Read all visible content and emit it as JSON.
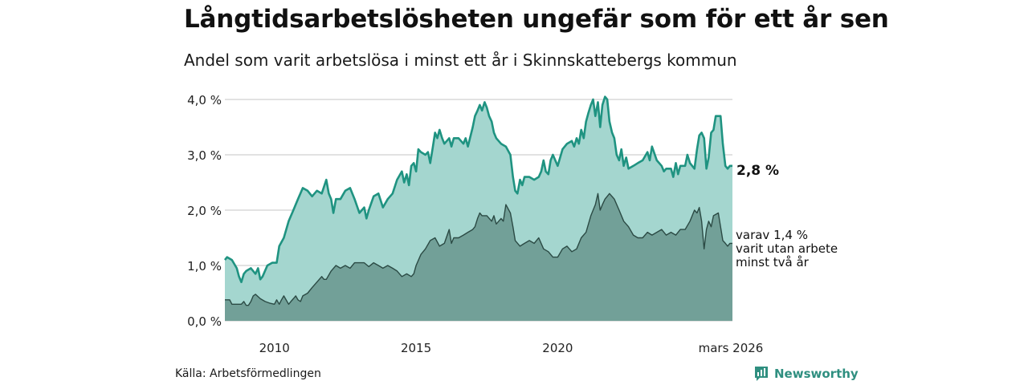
{
  "title": "Långtidsarbetslösheten ungefär som för ett år sen",
  "subtitle": "Andel som varit arbetslösa i minst ett år i Skinnskattebergs kommun",
  "source": "Källa: Arbetsförmedlingen",
  "brand": {
    "name": "Newsworthy",
    "icon": "newsworthy-logo-icon"
  },
  "colors": {
    "main_line": "#1f9381",
    "main_fill": "#a4d6cf",
    "sub_line": "#2b4a44",
    "sub_fill": "#72a098",
    "grid": "#d9d9d9",
    "brand": "#2f8f80"
  },
  "chart_data": {
    "type": "area",
    "title": "Långtidsarbetslösheten ungefär som för ett år sen",
    "subtitle": "Andel som varit arbetslösa i minst ett år i Skinnskattebergs kommun",
    "xlabel": "",
    "ylabel": "",
    "x_range": [
      2008.25,
      2026.17
    ],
    "ylim": [
      0,
      4.0
    ],
    "y_ticks": [
      0,
      1,
      2,
      3,
      4
    ],
    "y_tick_labels": [
      "0,0 %",
      "1,0 %",
      "2,0 %",
      "3,0 %",
      "4,0 %"
    ],
    "x_ticks": [
      2010,
      2015,
      2020,
      2026.17
    ],
    "x_tick_labels": [
      "2010",
      "2015",
      "2020",
      "mars 2026"
    ],
    "grid": true,
    "series": [
      {
        "name": "Minst ett år",
        "end_label": "2,8 %",
        "points": [
          [
            2008.25,
            1.1
          ],
          [
            2008.33,
            1.15
          ],
          [
            2008.5,
            1.1
          ],
          [
            2008.67,
            0.95
          ],
          [
            2008.75,
            0.8
          ],
          [
            2008.83,
            0.7
          ],
          [
            2008.92,
            0.85
          ],
          [
            2009.0,
            0.9
          ],
          [
            2009.17,
            0.95
          ],
          [
            2009.33,
            0.85
          ],
          [
            2009.42,
            0.95
          ],
          [
            2009.5,
            0.75
          ],
          [
            2009.58,
            0.8
          ],
          [
            2009.75,
            1.0
          ],
          [
            2009.92,
            1.05
          ],
          [
            2010.08,
            1.05
          ],
          [
            2010.17,
            1.35
          ],
          [
            2010.33,
            1.5
          ],
          [
            2010.5,
            1.8
          ],
          [
            2010.67,
            2.0
          ],
          [
            2010.83,
            2.2
          ],
          [
            2011.0,
            2.4
          ],
          [
            2011.17,
            2.35
          ],
          [
            2011.33,
            2.25
          ],
          [
            2011.5,
            2.35
          ],
          [
            2011.67,
            2.3
          ],
          [
            2011.83,
            2.55
          ],
          [
            2011.92,
            2.3
          ],
          [
            2012.0,
            2.2
          ],
          [
            2012.08,
            1.95
          ],
          [
            2012.17,
            2.2
          ],
          [
            2012.33,
            2.2
          ],
          [
            2012.5,
            2.35
          ],
          [
            2012.67,
            2.4
          ],
          [
            2012.83,
            2.2
          ],
          [
            2013.0,
            1.95
          ],
          [
            2013.17,
            2.05
          ],
          [
            2013.25,
            1.85
          ],
          [
            2013.33,
            2.0
          ],
          [
            2013.5,
            2.25
          ],
          [
            2013.67,
            2.3
          ],
          [
            2013.83,
            2.05
          ],
          [
            2014.0,
            2.2
          ],
          [
            2014.17,
            2.3
          ],
          [
            2014.33,
            2.55
          ],
          [
            2014.5,
            2.7
          ],
          [
            2014.58,
            2.5
          ],
          [
            2014.67,
            2.65
          ],
          [
            2014.75,
            2.45
          ],
          [
            2014.83,
            2.8
          ],
          [
            2014.92,
            2.85
          ],
          [
            2015.0,
            2.7
          ],
          [
            2015.08,
            3.1
          ],
          [
            2015.17,
            3.05
          ],
          [
            2015.33,
            3.0
          ],
          [
            2015.42,
            3.05
          ],
          [
            2015.5,
            2.85
          ],
          [
            2015.58,
            3.1
          ],
          [
            2015.67,
            3.4
          ],
          [
            2015.75,
            3.3
          ],
          [
            2015.83,
            3.45
          ],
          [
            2015.92,
            3.3
          ],
          [
            2016.0,
            3.2
          ],
          [
            2016.17,
            3.3
          ],
          [
            2016.25,
            3.15
          ],
          [
            2016.33,
            3.3
          ],
          [
            2016.5,
            3.3
          ],
          [
            2016.67,
            3.2
          ],
          [
            2016.75,
            3.3
          ],
          [
            2016.83,
            3.15
          ],
          [
            2017.0,
            3.5
          ],
          [
            2017.08,
            3.7
          ],
          [
            2017.17,
            3.8
          ],
          [
            2017.25,
            3.9
          ],
          [
            2017.33,
            3.8
          ],
          [
            2017.42,
            3.95
          ],
          [
            2017.5,
            3.85
          ],
          [
            2017.58,
            3.7
          ],
          [
            2017.67,
            3.6
          ],
          [
            2017.75,
            3.4
          ],
          [
            2017.83,
            3.3
          ],
          [
            2018.0,
            3.2
          ],
          [
            2018.17,
            3.15
          ],
          [
            2018.33,
            3.0
          ],
          [
            2018.42,
            2.6
          ],
          [
            2018.5,
            2.35
          ],
          [
            2018.58,
            2.3
          ],
          [
            2018.67,
            2.55
          ],
          [
            2018.75,
            2.45
          ],
          [
            2018.83,
            2.6
          ],
          [
            2019.0,
            2.6
          ],
          [
            2019.17,
            2.55
          ],
          [
            2019.33,
            2.6
          ],
          [
            2019.42,
            2.7
          ],
          [
            2019.5,
            2.9
          ],
          [
            2019.58,
            2.7
          ],
          [
            2019.67,
            2.65
          ],
          [
            2019.75,
            2.9
          ],
          [
            2019.83,
            3.0
          ],
          [
            2020.0,
            2.8
          ],
          [
            2020.17,
            3.1
          ],
          [
            2020.33,
            3.2
          ],
          [
            2020.5,
            3.25
          ],
          [
            2020.58,
            3.15
          ],
          [
            2020.67,
            3.3
          ],
          [
            2020.75,
            3.2
          ],
          [
            2020.83,
            3.45
          ],
          [
            2020.92,
            3.3
          ],
          [
            2021.0,
            3.6
          ],
          [
            2021.08,
            3.75
          ],
          [
            2021.17,
            3.9
          ],
          [
            2021.25,
            4.0
          ],
          [
            2021.33,
            3.7
          ],
          [
            2021.42,
            3.95
          ],
          [
            2021.5,
            3.5
          ],
          [
            2021.58,
            3.9
          ],
          [
            2021.67,
            4.05
          ],
          [
            2021.75,
            4.0
          ],
          [
            2021.83,
            3.6
          ],
          [
            2021.92,
            3.4
          ],
          [
            2022.0,
            3.3
          ],
          [
            2022.08,
            3.0
          ],
          [
            2022.17,
            2.9
          ],
          [
            2022.25,
            3.1
          ],
          [
            2022.33,
            2.8
          ],
          [
            2022.42,
            2.95
          ],
          [
            2022.5,
            2.75
          ],
          [
            2022.67,
            2.8
          ],
          [
            2022.83,
            2.85
          ],
          [
            2023.0,
            2.9
          ],
          [
            2023.17,
            3.05
          ],
          [
            2023.25,
            2.9
          ],
          [
            2023.33,
            3.15
          ],
          [
            2023.5,
            2.9
          ],
          [
            2023.67,
            2.8
          ],
          [
            2023.75,
            2.7
          ],
          [
            2023.83,
            2.75
          ],
          [
            2024.0,
            2.75
          ],
          [
            2024.08,
            2.6
          ],
          [
            2024.17,
            2.85
          ],
          [
            2024.25,
            2.65
          ],
          [
            2024.33,
            2.8
          ],
          [
            2024.5,
            2.8
          ],
          [
            2024.58,
            3.0
          ],
          [
            2024.67,
            2.85
          ],
          [
            2024.83,
            2.75
          ],
          [
            2024.92,
            3.1
          ],
          [
            2025.0,
            3.35
          ],
          [
            2025.08,
            3.4
          ],
          [
            2025.17,
            3.3
          ],
          [
            2025.25,
            2.75
          ],
          [
            2025.33,
            2.95
          ],
          [
            2025.42,
            3.4
          ],
          [
            2025.5,
            3.45
          ],
          [
            2025.58,
            3.7
          ],
          [
            2025.67,
            3.7
          ],
          [
            2025.75,
            3.7
          ],
          [
            2025.83,
            3.2
          ],
          [
            2025.92,
            2.8
          ],
          [
            2026.0,
            2.75
          ],
          [
            2026.08,
            2.8
          ],
          [
            2026.17,
            2.8
          ]
        ]
      },
      {
        "name": "varav minst två år",
        "end_label_lines": [
          "varav 1,4 %",
          "varit utan arbete",
          "minst två år"
        ],
        "points": [
          [
            2008.25,
            0.38
          ],
          [
            2008.42,
            0.38
          ],
          [
            2008.5,
            0.3
          ],
          [
            2008.67,
            0.3
          ],
          [
            2008.83,
            0.3
          ],
          [
            2008.92,
            0.35
          ],
          [
            2009.0,
            0.28
          ],
          [
            2009.08,
            0.28
          ],
          [
            2009.17,
            0.35
          ],
          [
            2009.25,
            0.45
          ],
          [
            2009.33,
            0.48
          ],
          [
            2009.5,
            0.4
          ],
          [
            2009.67,
            0.35
          ],
          [
            2009.83,
            0.32
          ],
          [
            2010.0,
            0.3
          ],
          [
            2010.08,
            0.38
          ],
          [
            2010.17,
            0.3
          ],
          [
            2010.25,
            0.38
          ],
          [
            2010.33,
            0.45
          ],
          [
            2010.5,
            0.3
          ],
          [
            2010.58,
            0.35
          ],
          [
            2010.67,
            0.4
          ],
          [
            2010.75,
            0.45
          ],
          [
            2010.83,
            0.38
          ],
          [
            2010.92,
            0.35
          ],
          [
            2011.0,
            0.45
          ],
          [
            2011.17,
            0.5
          ],
          [
            2011.33,
            0.6
          ],
          [
            2011.5,
            0.7
          ],
          [
            2011.67,
            0.8
          ],
          [
            2011.75,
            0.75
          ],
          [
            2011.83,
            0.75
          ],
          [
            2012.0,
            0.9
          ],
          [
            2012.17,
            1.0
          ],
          [
            2012.33,
            0.95
          ],
          [
            2012.5,
            1.0
          ],
          [
            2012.67,
            0.95
          ],
          [
            2012.83,
            1.05
          ],
          [
            2013.0,
            1.05
          ],
          [
            2013.17,
            1.05
          ],
          [
            2013.33,
            0.98
          ],
          [
            2013.5,
            1.05
          ],
          [
            2013.67,
            1.0
          ],
          [
            2013.83,
            0.95
          ],
          [
            2014.0,
            1.0
          ],
          [
            2014.17,
            0.95
          ],
          [
            2014.33,
            0.9
          ],
          [
            2014.5,
            0.8
          ],
          [
            2014.67,
            0.85
          ],
          [
            2014.83,
            0.8
          ],
          [
            2014.92,
            0.85
          ],
          [
            2015.0,
            1.0
          ],
          [
            2015.17,
            1.2
          ],
          [
            2015.33,
            1.3
          ],
          [
            2015.5,
            1.45
          ],
          [
            2015.67,
            1.5
          ],
          [
            2015.83,
            1.35
          ],
          [
            2016.0,
            1.4
          ],
          [
            2016.17,
            1.65
          ],
          [
            2016.25,
            1.4
          ],
          [
            2016.33,
            1.5
          ],
          [
            2016.5,
            1.5
          ],
          [
            2016.67,
            1.55
          ],
          [
            2016.83,
            1.6
          ],
          [
            2017.0,
            1.65
          ],
          [
            2017.08,
            1.7
          ],
          [
            2017.17,
            1.85
          ],
          [
            2017.25,
            1.95
          ],
          [
            2017.33,
            1.9
          ],
          [
            2017.5,
            1.9
          ],
          [
            2017.67,
            1.8
          ],
          [
            2017.75,
            1.9
          ],
          [
            2017.83,
            1.75
          ],
          [
            2018.0,
            1.85
          ],
          [
            2018.08,
            1.8
          ],
          [
            2018.17,
            2.1
          ],
          [
            2018.33,
            1.95
          ],
          [
            2018.42,
            1.7
          ],
          [
            2018.5,
            1.45
          ],
          [
            2018.67,
            1.35
          ],
          [
            2018.83,
            1.4
          ],
          [
            2019.0,
            1.45
          ],
          [
            2019.17,
            1.4
          ],
          [
            2019.33,
            1.5
          ],
          [
            2019.5,
            1.3
          ],
          [
            2019.67,
            1.25
          ],
          [
            2019.83,
            1.15
          ],
          [
            2020.0,
            1.15
          ],
          [
            2020.17,
            1.3
          ],
          [
            2020.33,
            1.35
          ],
          [
            2020.5,
            1.25
          ],
          [
            2020.67,
            1.3
          ],
          [
            2020.83,
            1.5
          ],
          [
            2021.0,
            1.6
          ],
          [
            2021.17,
            1.9
          ],
          [
            2021.33,
            2.1
          ],
          [
            2021.42,
            2.3
          ],
          [
            2021.5,
            2.0
          ],
          [
            2021.58,
            2.1
          ],
          [
            2021.67,
            2.2
          ],
          [
            2021.75,
            2.25
          ],
          [
            2021.83,
            2.3
          ],
          [
            2022.0,
            2.2
          ],
          [
            2022.17,
            2.0
          ],
          [
            2022.33,
            1.8
          ],
          [
            2022.5,
            1.7
          ],
          [
            2022.67,
            1.55
          ],
          [
            2022.83,
            1.5
          ],
          [
            2023.0,
            1.5
          ],
          [
            2023.17,
            1.6
          ],
          [
            2023.33,
            1.55
          ],
          [
            2023.5,
            1.6
          ],
          [
            2023.67,
            1.65
          ],
          [
            2023.83,
            1.55
          ],
          [
            2024.0,
            1.6
          ],
          [
            2024.17,
            1.55
          ],
          [
            2024.33,
            1.65
          ],
          [
            2024.5,
            1.65
          ],
          [
            2024.67,
            1.8
          ],
          [
            2024.75,
            1.9
          ],
          [
            2024.83,
            2.0
          ],
          [
            2024.92,
            1.95
          ],
          [
            2025.0,
            2.05
          ],
          [
            2025.08,
            1.8
          ],
          [
            2025.17,
            1.3
          ],
          [
            2025.25,
            1.65
          ],
          [
            2025.33,
            1.8
          ],
          [
            2025.42,
            1.7
          ],
          [
            2025.5,
            1.9
          ],
          [
            2025.67,
            1.95
          ],
          [
            2025.75,
            1.7
          ],
          [
            2025.83,
            1.45
          ],
          [
            2025.92,
            1.4
          ],
          [
            2026.0,
            1.35
          ],
          [
            2026.08,
            1.4
          ],
          [
            2026.17,
            1.4
          ]
        ]
      }
    ]
  }
}
